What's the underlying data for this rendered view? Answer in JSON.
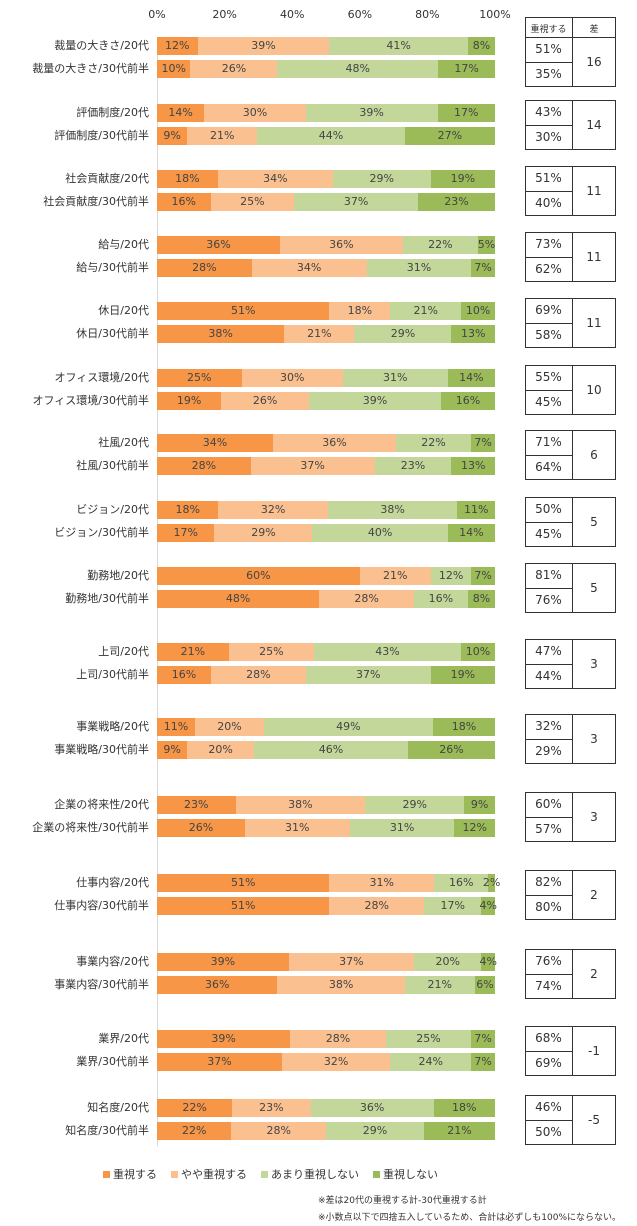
{
  "chart_data": {
    "type": "bar",
    "orientation": "horizontal",
    "stacked": "100%",
    "xlim": [
      0,
      100
    ],
    "x_ticks": [
      "0%",
      "20%",
      "40%",
      "60%",
      "80%",
      "100%"
    ],
    "legend_position": "bottom",
    "series_names": [
      "重視する",
      "やや重視する",
      "あまり重視しない",
      "重視しない"
    ],
    "colors": [
      "#F79646",
      "#FAC090",
      "#C4D79B",
      "#9BBB59"
    ],
    "table_headers": [
      "重視する",
      "差"
    ],
    "groups": [
      {
        "rows": [
          {
            "label": "裁量の大きさ/20代",
            "values": [
              12,
              39,
              41,
              8
            ],
            "important": "51%"
          },
          {
            "label": "裁量の大きさ/30代前半",
            "values": [
              10,
              26,
              48,
              17
            ],
            "important": "35%"
          }
        ],
        "diff": "16"
      },
      {
        "rows": [
          {
            "label": "評価制度/20代",
            "values": [
              14,
              30,
              39,
              17
            ],
            "important": "43%"
          },
          {
            "label": "評価制度/30代前半",
            "values": [
              9,
              21,
              44,
              27
            ],
            "important": "30%"
          }
        ],
        "diff": "14"
      },
      {
        "rows": [
          {
            "label": "社会貢献度/20代",
            "values": [
              18,
              34,
              29,
              19
            ],
            "important": "51%"
          },
          {
            "label": "社会貢献度/30代前半",
            "values": [
              16,
              25,
              37,
              23
            ],
            "important": "40%"
          }
        ],
        "diff": "11"
      },
      {
        "rows": [
          {
            "label": "給与/20代",
            "values": [
              36,
              36,
              22,
              5
            ],
            "important": "73%"
          },
          {
            "label": "給与/30代前半",
            "values": [
              28,
              34,
              31,
              7
            ],
            "important": "62%"
          }
        ],
        "diff": "11"
      },
      {
        "rows": [
          {
            "label": "休日/20代",
            "values": [
              51,
              18,
              21,
              10
            ],
            "important": "69%"
          },
          {
            "label": "休日/30代前半",
            "values": [
              38,
              21,
              29,
              13
            ],
            "important": "58%"
          }
        ],
        "diff": "11"
      },
      {
        "rows": [
          {
            "label": "オフィス環境/20代",
            "values": [
              25,
              30,
              31,
              14
            ],
            "important": "55%"
          },
          {
            "label": "オフィス環境/30代前半",
            "values": [
              19,
              26,
              39,
              16
            ],
            "important": "45%"
          }
        ],
        "diff": "10"
      },
      {
        "rows": [
          {
            "label": "社風/20代",
            "values": [
              34,
              36,
              22,
              7
            ],
            "important": "71%"
          },
          {
            "label": "社風/30代前半",
            "values": [
              28,
              37,
              23,
              13
            ],
            "important": "64%"
          }
        ],
        "diff": "6"
      },
      {
        "rows": [
          {
            "label": "ビジョン/20代",
            "values": [
              18,
              32,
              38,
              11
            ],
            "important": "50%"
          },
          {
            "label": "ビジョン/30代前半",
            "values": [
              17,
              29,
              40,
              14
            ],
            "important": "45%"
          }
        ],
        "diff": "5"
      },
      {
        "rows": [
          {
            "label": "勤務地/20代",
            "values": [
              60,
              21,
              12,
              7
            ],
            "important": "81%"
          },
          {
            "label": "勤務地/30代前半",
            "values": [
              48,
              28,
              16,
              8
            ],
            "important": "76%"
          }
        ],
        "diff": "5"
      },
      {
        "rows": [
          {
            "label": "上司/20代",
            "values": [
              21,
              25,
              43,
              10
            ],
            "important": "47%"
          },
          {
            "label": "上司/30代前半",
            "values": [
              16,
              28,
              37,
              19
            ],
            "important": "44%"
          }
        ],
        "diff": "3"
      },
      {
        "rows": [
          {
            "label": "事業戦略/20代",
            "values": [
              11,
              20,
              49,
              18
            ],
            "important": "32%"
          },
          {
            "label": "事業戦略/30代前半",
            "values": [
              9,
              20,
              46,
              26
            ],
            "important": "29%"
          }
        ],
        "diff": "3"
      },
      {
        "rows": [
          {
            "label": "企業の将来性/20代",
            "values": [
              23,
              38,
              29,
              9
            ],
            "important": "60%"
          },
          {
            "label": "企業の将来性/30代前半",
            "values": [
              26,
              31,
              31,
              12
            ],
            "important": "57%"
          }
        ],
        "diff": "3"
      },
      {
        "rows": [
          {
            "label": "仕事内容/20代",
            "values": [
              51,
              31,
              16,
              2
            ],
            "important": "82%"
          },
          {
            "label": "仕事内容/30代前半",
            "values": [
              51,
              28,
              17,
              4
            ],
            "important": "80%"
          }
        ],
        "diff": "2"
      },
      {
        "rows": [
          {
            "label": "事業内容/20代",
            "values": [
              39,
              37,
              20,
              4
            ],
            "important": "76%"
          },
          {
            "label": "事業内容/30代前半",
            "values": [
              36,
              38,
              21,
              6
            ],
            "important": "74%"
          }
        ],
        "diff": "2"
      },
      {
        "rows": [
          {
            "label": "業界/20代",
            "values": [
              39,
              28,
              25,
              7
            ],
            "important": "68%"
          },
          {
            "label": "業界/30代前半",
            "values": [
              37,
              32,
              24,
              7
            ],
            "important": "69%"
          }
        ],
        "diff": "-1"
      },
      {
        "rows": [
          {
            "label": "知名度/20代",
            "values": [
              22,
              23,
              36,
              18
            ],
            "important": "46%"
          },
          {
            "label": "知名度/30代前半",
            "values": [
              22,
              28,
              29,
              21
            ],
            "important": "50%"
          }
        ],
        "diff": "-5"
      }
    ],
    "notes": [
      "※差は20代の重視する計-30代重視する計",
      "※小数点以下で四捨五入しているため、合計は必ずしも100%にならない。"
    ]
  }
}
